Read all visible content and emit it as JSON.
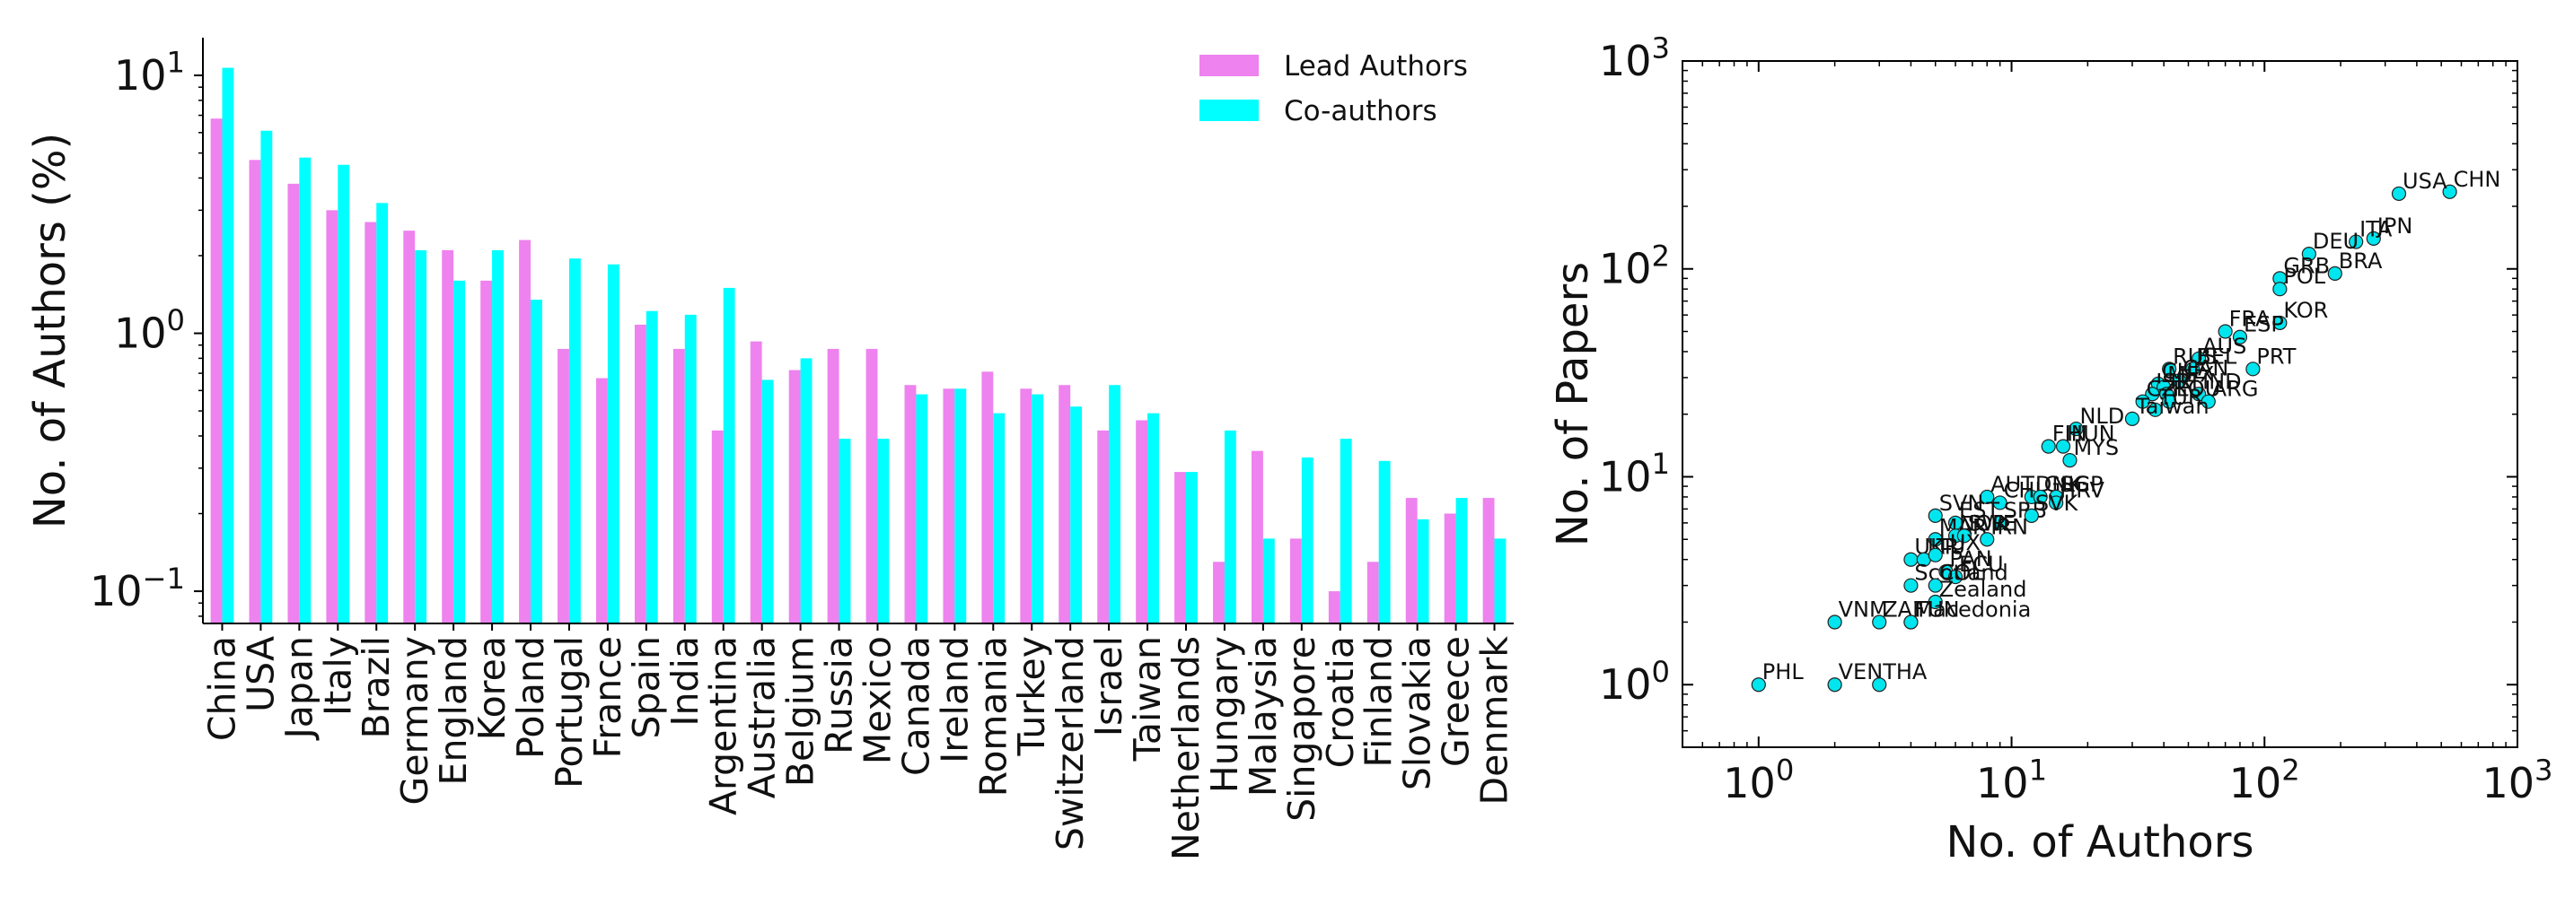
{
  "chart_data": [
    {
      "type": "bar",
      "yscale": "log",
      "ylim": [
        0.075,
        14
      ],
      "ylabel": "No. of Authors (%)",
      "xlabel": "",
      "yticks": [
        {
          "value": 0.1,
          "base": "10",
          "exp": "−1"
        },
        {
          "value": 1,
          "base": "10",
          "exp": "0"
        },
        {
          "value": 10,
          "base": "10",
          "exp": "1"
        }
      ],
      "legend": {
        "position": "top-right"
      },
      "colors": {
        "lead": "#ee82ee",
        "co": "#00ffff"
      },
      "categories": [
        "China",
        "USA",
        "Japan",
        "Italy",
        "Brazil",
        "Germany",
        "England",
        "Korea",
        "Poland",
        "Portugal",
        "France",
        "Spain",
        "India",
        "Argentina",
        "Australia",
        "Belgium",
        "Russia",
        "Mexico",
        "Canada",
        "Ireland",
        "Romania",
        "Turkey",
        "Switzerland",
        "Israel",
        "Taiwan",
        "Netherlands",
        "Hungary",
        "Malaysia",
        "Singapore",
        "Croatia",
        "Finland",
        "Slovakia",
        "Greece",
        "Denmark"
      ],
      "series": [
        {
          "name": "Lead Authors",
          "values": [
            6.8,
            4.7,
            3.8,
            3.0,
            2.7,
            2.5,
            2.1,
            1.6,
            2.3,
            0.87,
            0.67,
            1.08,
            0.87,
            0.42,
            0.93,
            0.72,
            0.87,
            0.87,
            0.63,
            0.61,
            0.71,
            0.61,
            0.63,
            0.42,
            0.46,
            0.29,
            0.13,
            0.35,
            0.16,
            0.1,
            0.13,
            0.23,
            0.2,
            0.23
          ]
        },
        {
          "name": "Co-authors",
          "values": [
            10.7,
            6.1,
            4.8,
            4.5,
            3.2,
            2.1,
            1.6,
            2.1,
            1.35,
            1.95,
            1.85,
            1.22,
            1.18,
            1.5,
            0.66,
            0.8,
            0.39,
            0.39,
            0.58,
            0.61,
            0.49,
            0.58,
            0.52,
            0.63,
            0.49,
            0.29,
            0.42,
            0.16,
            0.33,
            0.39,
            0.32,
            0.19,
            0.23,
            0.16
          ]
        }
      ]
    },
    {
      "type": "scatter",
      "xscale": "log",
      "yscale": "log",
      "xlim": [
        0.5,
        1000
      ],
      "ylim": [
        0.5,
        1000
      ],
      "xlabel": "No. of Authors",
      "ylabel": "No. of Papers",
      "ticks": [
        {
          "value": 1,
          "base": "10",
          "exp": "0"
        },
        {
          "value": 10,
          "base": "10",
          "exp": "1"
        },
        {
          "value": 100,
          "base": "10",
          "exp": "2"
        },
        {
          "value": 1000,
          "base": "10",
          "exp": "3"
        }
      ],
      "color": "#00e5ee",
      "points": [
        {
          "label": "CHN",
          "x": 540,
          "y": 235
        },
        {
          "label": "USA",
          "x": 340,
          "y": 230
        },
        {
          "label": "JPN",
          "x": 270,
          "y": 140
        },
        {
          "label": "ITA",
          "x": 230,
          "y": 135
        },
        {
          "label": "DEU",
          "x": 150,
          "y": 118
        },
        {
          "label": "BRA",
          "x": 190,
          "y": 95
        },
        {
          "label": "GRB",
          "x": 115,
          "y": 90
        },
        {
          "label": "POL",
          "x": 115,
          "y": 80
        },
        {
          "label": "KOR",
          "x": 115,
          "y": 55
        },
        {
          "label": "FRA",
          "x": 70,
          "y": 50
        },
        {
          "label": "ESP",
          "x": 80,
          "y": 47
        },
        {
          "label": "PRT",
          "x": 90,
          "y": 33
        },
        {
          "label": "AUS",
          "x": 55,
          "y": 37
        },
        {
          "label": "RUS",
          "x": 42,
          "y": 33
        },
        {
          "label": "BEL",
          "x": 52,
          "y": 33
        },
        {
          "label": "CHE",
          "x": 38,
          "y": 28
        },
        {
          "label": "CAN",
          "x": 46,
          "y": 29
        },
        {
          "label": "ISR",
          "x": 36,
          "y": 25
        },
        {
          "label": "MEX",
          "x": 40,
          "y": 27
        },
        {
          "label": "IRL",
          "x": 41,
          "y": 25
        },
        {
          "label": "IND",
          "x": 55,
          "y": 25
        },
        {
          "label": "ROU",
          "x": 42,
          "y": 23
        },
        {
          "label": "ARG",
          "x": 60,
          "y": 23
        },
        {
          "label": "CZE",
          "x": 33,
          "y": 23
        },
        {
          "label": "TUR",
          "x": 37,
          "y": 21
        },
        {
          "label": "Taiwan",
          "x": 30,
          "y": 19
        },
        {
          "label": "NLD",
          "x": 18,
          "y": 17
        },
        {
          "label": "FIN",
          "x": 14,
          "y": 14
        },
        {
          "label": "HUN",
          "x": 16,
          "y": 14
        },
        {
          "label": "MYS",
          "x": 17,
          "y": 12
        },
        {
          "label": "AUT",
          "x": 8,
          "y": 8
        },
        {
          "label": "DNK",
          "x": 12,
          "y": 8
        },
        {
          "label": "CHL",
          "x": 9,
          "y": 7.5
        },
        {
          "label": "GRC",
          "x": 13,
          "y": 8
        },
        {
          "label": "SGP",
          "x": 15,
          "y": 8
        },
        {
          "label": "HRV",
          "x": 15,
          "y": 7.5
        },
        {
          "label": "SVN",
          "x": 5,
          "y": 6.5
        },
        {
          "label": "EST",
          "x": 6,
          "y": 6
        },
        {
          "label": "SRB",
          "x": 9,
          "y": 6
        },
        {
          "label": "SVK",
          "x": 12,
          "y": 6.5
        },
        {
          "label": "MAR",
          "x": 5,
          "y": 5
        },
        {
          "label": "NOR",
          "x": 6,
          "y": 5.2
        },
        {
          "label": "SWE",
          "x": 6.5,
          "y": 5.2
        },
        {
          "label": "IRN",
          "x": 8,
          "y": 5
        },
        {
          "label": "UKR",
          "x": 4,
          "y": 4
        },
        {
          "label": "LTU",
          "x": 4.5,
          "y": 4
        },
        {
          "label": "LUX",
          "x": 5,
          "y": 4.2
        },
        {
          "label": "PAN",
          "x": 5.5,
          "y": 3.5
        },
        {
          "label": "ECU",
          "x": 6,
          "y": 3.3
        },
        {
          "label": "Scotland",
          "x": 4,
          "y": 3
        },
        {
          "label": "COL",
          "x": 5,
          "y": 3
        },
        {
          "label": "Zealand",
          "x": 5,
          "y": 2.5
        },
        {
          "label": "VNM",
          "x": 2,
          "y": 2
        },
        {
          "label": "ZAF",
          "x": 3,
          "y": 2
        },
        {
          "label": "TUN",
          "x": 4,
          "y": 2
        },
        {
          "label": "Macedonia",
          "x": 4,
          "y": 2
        },
        {
          "label": "PHL",
          "x": 1,
          "y": 1
        },
        {
          "label": "VEN",
          "x": 2,
          "y": 1
        },
        {
          "label": "THA",
          "x": 3,
          "y": 1
        }
      ]
    }
  ]
}
